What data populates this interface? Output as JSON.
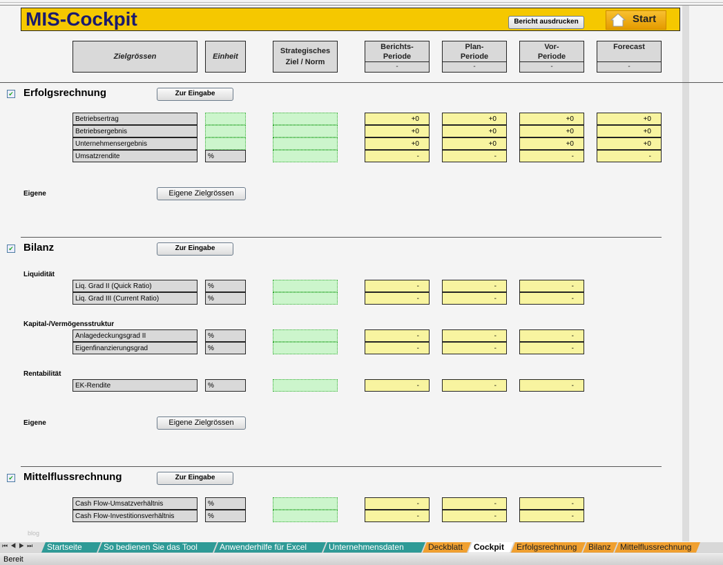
{
  "header": {
    "title": "MIS-Cockpit",
    "print_label": "Bericht ausdrucken",
    "start_label": "Start"
  },
  "columns": {
    "zielgroessen": "Zielgrössen",
    "einheit": "Einheit",
    "ziel": "Strategisches Ziel / Norm",
    "periods": [
      {
        "label": "Berichts-\nPeriode",
        "value": "-"
      },
      {
        "label": "Plan-\nPeriode",
        "value": "-"
      },
      {
        "label": "Vor-\nPeriode",
        "value": "-"
      },
      {
        "label": "Forecast",
        "value": "-"
      }
    ]
  },
  "sections": [
    {
      "title": "Erfolgsrechnung",
      "checked": true,
      "button": "Zur Eingabe",
      "groups": [
        {
          "title": "",
          "rows": [
            {
              "label": "Betriebsertrag",
              "unit": "",
              "values": [
                "+0",
                "+0",
                "+0",
                "+0"
              ]
            },
            {
              "label": "Betriebsergebnis",
              "unit": "",
              "values": [
                "+0",
                "+0",
                "+0",
                "+0"
              ]
            },
            {
              "label": "Unternehmensergebnis",
              "unit": "",
              "values": [
                "+0",
                "+0",
                "+0",
                "+0"
              ]
            },
            {
              "label": "Umsatzrendite",
              "unit": "%",
              "values": [
                "-",
                "-",
                "-",
                "-"
              ]
            }
          ]
        }
      ],
      "eigene_label": "Eigene",
      "eigene_button": "Eigene Zielgrössen"
    },
    {
      "title": "Bilanz",
      "checked": true,
      "button": "Zur Eingabe",
      "groups": [
        {
          "title": "Liquidität",
          "rows": [
            {
              "label": "Liq. Grad II (Quick Ratio)",
              "unit": "%",
              "values": [
                "-",
                "-",
                "-"
              ]
            },
            {
              "label": "Liq. Grad III (Current Ratio)",
              "unit": "%",
              "values": [
                "-",
                "-",
                "-"
              ]
            }
          ]
        },
        {
          "title": "Kapital-/Vermögensstruktur",
          "rows": [
            {
              "label": "Anlagedeckungsgrad II",
              "unit": "%",
              "values": [
                "-",
                "-",
                "-"
              ]
            },
            {
              "label": "Eigenfinanzierungsgrad",
              "unit": "%",
              "values": [
                "-",
                "-",
                "-"
              ]
            }
          ]
        },
        {
          "title": "Rentabilität",
          "rows": [
            {
              "label": "EK-Rendite",
              "unit": "%",
              "values": [
                "-",
                "-",
                "-"
              ]
            }
          ]
        }
      ],
      "eigene_label": "Eigene",
      "eigene_button": "Eigene Zielgrössen"
    },
    {
      "title": "Mittelflussrechnung",
      "checked": true,
      "button": "Zur Eingabe",
      "groups": [
        {
          "title": "",
          "rows": [
            {
              "label": "Cash Flow-Umsatzverhältnis",
              "unit": "%",
              "values": [
                "-",
                "-",
                "-"
              ]
            },
            {
              "label": "Cash Flow-Investitionsverhältnis",
              "unit": "%",
              "values": [
                "-",
                "-",
                "-"
              ]
            }
          ]
        }
      ]
    }
  ],
  "watermark": "blog",
  "sheet_tabs": [
    {
      "label": "Startseite",
      "color": "#2e9a96"
    },
    {
      "label": "So bedienen Sie das Tool",
      "color": "#2e9a96"
    },
    {
      "label": "Anwenderhilfe für Excel",
      "color": "#2e9a96"
    },
    {
      "label": "Unternehmensdaten",
      "color": "#2e9a96"
    },
    {
      "label": "Deckblatt",
      "color": "#f0a030"
    },
    {
      "label": "Cockpit",
      "color": "#ffffff",
      "active": true
    },
    {
      "label": "Erfolgsrechnung",
      "color": "#f0a030"
    },
    {
      "label": "Bilanz",
      "color": "#f0a030"
    },
    {
      "label": "Mittelflussrechnung",
      "color": "#f0a030"
    }
  ],
  "status": "Bereit"
}
